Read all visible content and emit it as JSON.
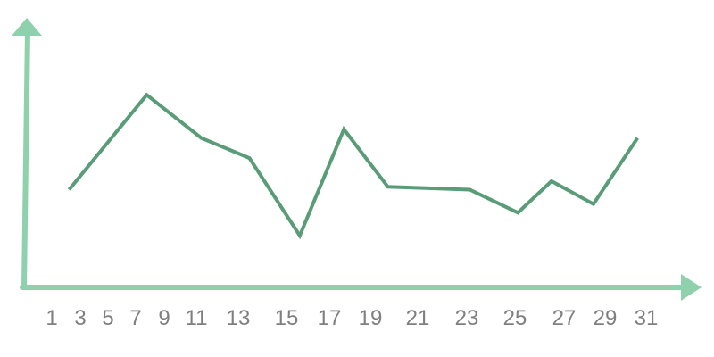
{
  "colors": {
    "axis": "#8fd0ad",
    "series": "#5a9c78",
    "tick_text": "#7f7f7f"
  },
  "chart_data": {
    "type": "line",
    "title": "",
    "xlabel": "",
    "ylabel": "",
    "x_ticks": [
      1,
      3,
      5,
      7,
      9,
      11,
      13,
      15,
      17,
      19,
      21,
      23,
      25,
      27,
      29,
      31
    ],
    "xlim": [
      0,
      33
    ],
    "ylim": [
      0,
      100
    ],
    "grid": false,
    "legend": "none",
    "series": [
      {
        "x": [
          3,
          6.7,
          9.3,
          11.6,
          14,
          16.1,
          18.2,
          22.1,
          24.4,
          26,
          28,
          30.1
        ],
        "y": [
          34,
          67,
          52,
          45,
          18,
          55,
          35,
          34,
          26,
          37,
          29,
          52
        ]
      }
    ]
  }
}
